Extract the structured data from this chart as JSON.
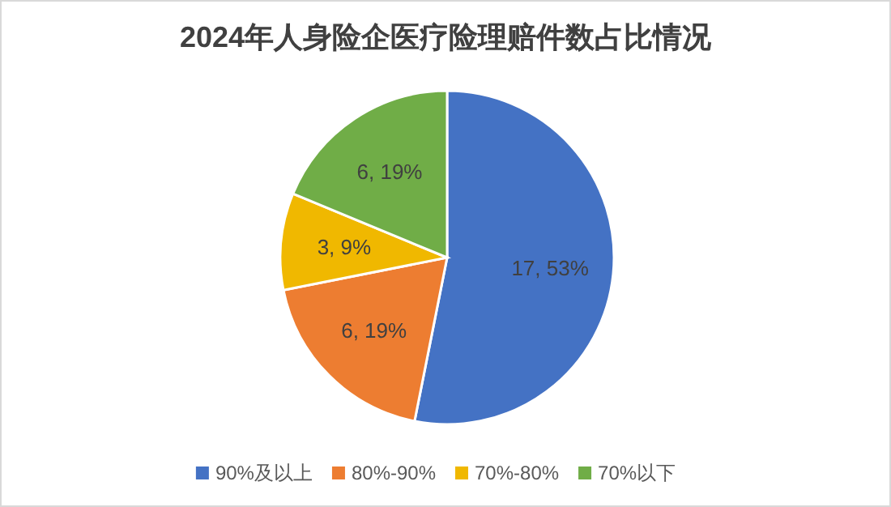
{
  "chart_data": {
    "type": "pie",
    "title": "2024年人身险企医疗险理赔件数占比情况",
    "categories": [
      "90%及以上",
      "80%-90%",
      "70%-80%",
      "70%以下"
    ],
    "values": [
      17,
      6,
      3,
      6
    ],
    "colors": [
      "#4472c4",
      "#ed7d31",
      "#f0b800",
      "#70ad47"
    ],
    "value_labels": [
      "17, 53%",
      "6, 19%",
      "3, 9%",
      "6, 19%"
    ],
    "legend": "bottom"
  }
}
